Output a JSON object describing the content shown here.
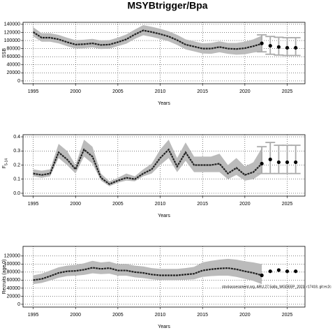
{
  "title": "MSYBtrigger/Bpa",
  "chart_data": [
    {
      "type": "line",
      "ylabel": "SSB",
      "xlabel": "Years",
      "xlim": [
        1993.8,
        2027.1
      ],
      "xticks": [
        1995,
        2000,
        2005,
        2010,
        2015,
        2020,
        2025
      ],
      "ylim": [
        -7000,
        145000
      ],
      "yticks": [
        0,
        20000,
        40000,
        60000,
        80000,
        100000,
        120000,
        140000
      ],
      "grid": true,
      "color": "#222222",
      "band_color": "#bbbbbb",
      "x": [
        1995,
        1996,
        1997,
        1998,
        1999,
        2000,
        2001,
        2002,
        2003,
        2004,
        2005,
        2006,
        2007,
        2008,
        2009,
        2010,
        2011,
        2012,
        2013,
        2014,
        2015,
        2016,
        2017,
        2018,
        2019,
        2020,
        2021,
        2022
      ],
      "values": [
        121000,
        107000,
        107000,
        103000,
        96000,
        90000,
        91000,
        93000,
        89000,
        90000,
        96000,
        103000,
        115000,
        125000,
        121000,
        116000,
        110000,
        101000,
        90000,
        85000,
        80000,
        80000,
        84000,
        80000,
        79000,
        81000,
        86000,
        92000
      ],
      "lower": [
        110000,
        97000,
        97000,
        93000,
        86000,
        80000,
        81000,
        83000,
        79000,
        80000,
        86000,
        92000,
        104000,
        113000,
        109000,
        104000,
        98000,
        89000,
        78000,
        73000,
        68000,
        67000,
        71000,
        67000,
        65000,
        66000,
        70000,
        73000
      ],
      "upper": [
        133000,
        118000,
        118000,
        114000,
        107000,
        101000,
        102000,
        104000,
        100000,
        101000,
        107000,
        115000,
        127000,
        138000,
        134000,
        129000,
        123000,
        114000,
        103000,
        98000,
        93000,
        94000,
        98000,
        94000,
        94000,
        97000,
        103000,
        112000
      ],
      "forecast": {
        "color": "#aaaaaa",
        "x": [
          2022,
          2023,
          2024,
          2025,
          2026
        ],
        "values": [
          93000,
          87000,
          84000,
          82000,
          82000
        ],
        "lower": [
          72000,
          66000,
          64000,
          63000,
          63000
        ],
        "upper": [
          114000,
          110000,
          108000,
          107000,
          107000
        ]
      }
    },
    {
      "type": "line",
      "ylabel": "F",
      "ylabel_sub": "5-14",
      "xlabel": "Years",
      "xlim": [
        1993.8,
        2027.1
      ],
      "xticks": [
        1995,
        2000,
        2005,
        2010,
        2015,
        2020,
        2025
      ],
      "ylim": [
        -0.02,
        0.415
      ],
      "yticks": [
        {
          "value": 0,
          "label": "0.0"
        },
        0.1,
        0.2,
        0.3,
        0.4
      ],
      "grid": true,
      "color": "#222222",
      "band_color": "#bbbbbb",
      "x": [
        1995,
        1996,
        1997,
        1998,
        1999,
        2000,
        2001,
        2002,
        2003,
        2004,
        2005,
        2006,
        2007,
        2008,
        2009,
        2010,
        2011,
        2012,
        2013,
        2014,
        2015,
        2016,
        2017,
        2018,
        2019,
        2020,
        2021,
        2022
      ],
      "values": [
        0.14,
        0.13,
        0.14,
        0.29,
        0.24,
        0.17,
        0.31,
        0.26,
        0.11,
        0.065,
        0.09,
        0.11,
        0.1,
        0.14,
        0.17,
        0.25,
        0.31,
        0.19,
        0.29,
        0.2,
        0.2,
        0.2,
        0.21,
        0.14,
        0.18,
        0.13,
        0.15,
        0.21
      ],
      "lower": [
        0.12,
        0.11,
        0.12,
        0.25,
        0.2,
        0.14,
        0.26,
        0.21,
        0.09,
        0.05,
        0.075,
        0.09,
        0.085,
        0.12,
        0.14,
        0.2,
        0.25,
        0.15,
        0.23,
        0.15,
        0.15,
        0.15,
        0.15,
        0.1,
        0.13,
        0.09,
        0.1,
        0.14
      ],
      "upper": [
        0.17,
        0.16,
        0.17,
        0.35,
        0.3,
        0.2,
        0.38,
        0.33,
        0.14,
        0.085,
        0.11,
        0.14,
        0.12,
        0.17,
        0.21,
        0.31,
        0.38,
        0.25,
        0.36,
        0.26,
        0.26,
        0.26,
        0.28,
        0.2,
        0.25,
        0.19,
        0.22,
        0.32
      ],
      "forecast": {
        "color": "#aaaaaa",
        "x": [
          2022,
          2023,
          2024,
          2025,
          2026
        ],
        "values": [
          0.21,
          0.24,
          0.22,
          0.22,
          0.22
        ],
        "lower": [
          0.14,
          0.14,
          0.14,
          0.14,
          0.14
        ],
        "upper": [
          0.33,
          0.36,
          0.34,
          0.34,
          0.34
        ]
      }
    },
    {
      "type": "line",
      "ylabel": "Recruits (age 0)",
      "xlabel": "Years",
      "annotation": "stockassessment.org, ARU.27.5a8a_WGDEEP_2023, r17418, git:ec2c",
      "xlim": [
        1993.8,
        2027.1
      ],
      "xticks": [
        1995,
        2000,
        2005,
        2010,
        2015,
        2020,
        2025
      ],
      "ylim": [
        -7000,
        144000
      ],
      "yticks": [
        0,
        20000,
        40000,
        60000,
        80000,
        100000,
        120000
      ],
      "grid": true,
      "color": "#222222",
      "band_color": "#bbbbbb",
      "x": [
        1995,
        1996,
        1997,
        1998,
        1999,
        2000,
        2001,
        2002,
        2003,
        2004,
        2005,
        2006,
        2007,
        2008,
        2009,
        2010,
        2011,
        2012,
        2013,
        2014,
        2015,
        2016,
        2017,
        2018,
        2019,
        2020,
        2021,
        2022
      ],
      "values": [
        60000,
        63000,
        70000,
        78000,
        82000,
        83000,
        86000,
        91000,
        88000,
        90000,
        84000,
        84000,
        80000,
        78000,
        74000,
        72000,
        72000,
        72000,
        74000,
        76000,
        84000,
        87000,
        89000,
        90000,
        87000,
        82000,
        78000,
        72000
      ],
      "lower": [
        50000,
        53000,
        59000,
        66000,
        70000,
        71000,
        73000,
        77000,
        75000,
        76000,
        71000,
        71000,
        67000,
        65000,
        62000,
        60000,
        60000,
        60000,
        61000,
        62000,
        68000,
        70000,
        71000,
        71000,
        68000,
        63000,
        58000,
        50000
      ],
      "upper": [
        72000,
        76000,
        84000,
        92000,
        96000,
        98000,
        102000,
        108000,
        104000,
        106000,
        100000,
        100000,
        96000,
        94000,
        90000,
        88000,
        88000,
        88000,
        90000,
        93000,
        104000,
        108000,
        111000,
        113000,
        111000,
        107000,
        104000,
        100000
      ],
      "forecast": {
        "color": "#aaaaaa",
        "x": [
          2022,
          2023,
          2024,
          2025,
          2026
        ],
        "values": [
          72000,
          82000,
          85000,
          82000,
          82000
        ]
      }
    }
  ]
}
